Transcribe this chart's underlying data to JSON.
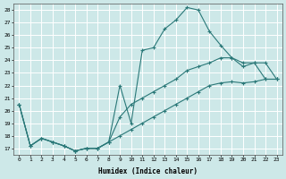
{
  "xlabel": "Humidex (Indice chaleur)",
  "xlim": [
    -0.5,
    23.5
  ],
  "ylim": [
    16.5,
    28.5
  ],
  "xticks": [
    0,
    1,
    2,
    3,
    4,
    5,
    6,
    7,
    8,
    9,
    10,
    11,
    12,
    13,
    14,
    15,
    16,
    17,
    18,
    19,
    20,
    21,
    22,
    23
  ],
  "yticks": [
    17,
    18,
    19,
    20,
    21,
    22,
    23,
    24,
    25,
    26,
    27,
    28
  ],
  "bg_color": "#cde8e8",
  "grid_color": "#ffffff",
  "line_color": "#2a7878",
  "line1_y": [
    20.5,
    17.2,
    17.8,
    17.5,
    17.2,
    16.8,
    17.0,
    17.0,
    17.5,
    22.0,
    19.0,
    24.8,
    25.0,
    26.5,
    27.2,
    28.2,
    28.0,
    26.3,
    25.2,
    24.2,
    23.8,
    23.8,
    22.5,
    22.5
  ],
  "line2_y": [
    20.5,
    17.2,
    17.8,
    17.5,
    17.2,
    16.8,
    17.0,
    17.0,
    17.5,
    19.5,
    20.5,
    21.0,
    21.5,
    22.0,
    22.5,
    23.2,
    23.5,
    23.8,
    24.2,
    24.2,
    23.5,
    23.8,
    23.8,
    22.5
  ],
  "line3_y": [
    20.5,
    17.2,
    17.8,
    17.5,
    17.2,
    16.8,
    17.0,
    17.0,
    17.5,
    18.0,
    18.5,
    19.0,
    19.5,
    20.0,
    20.5,
    21.0,
    21.5,
    22.0,
    22.2,
    22.3,
    22.2,
    22.3,
    22.5,
    22.5
  ]
}
